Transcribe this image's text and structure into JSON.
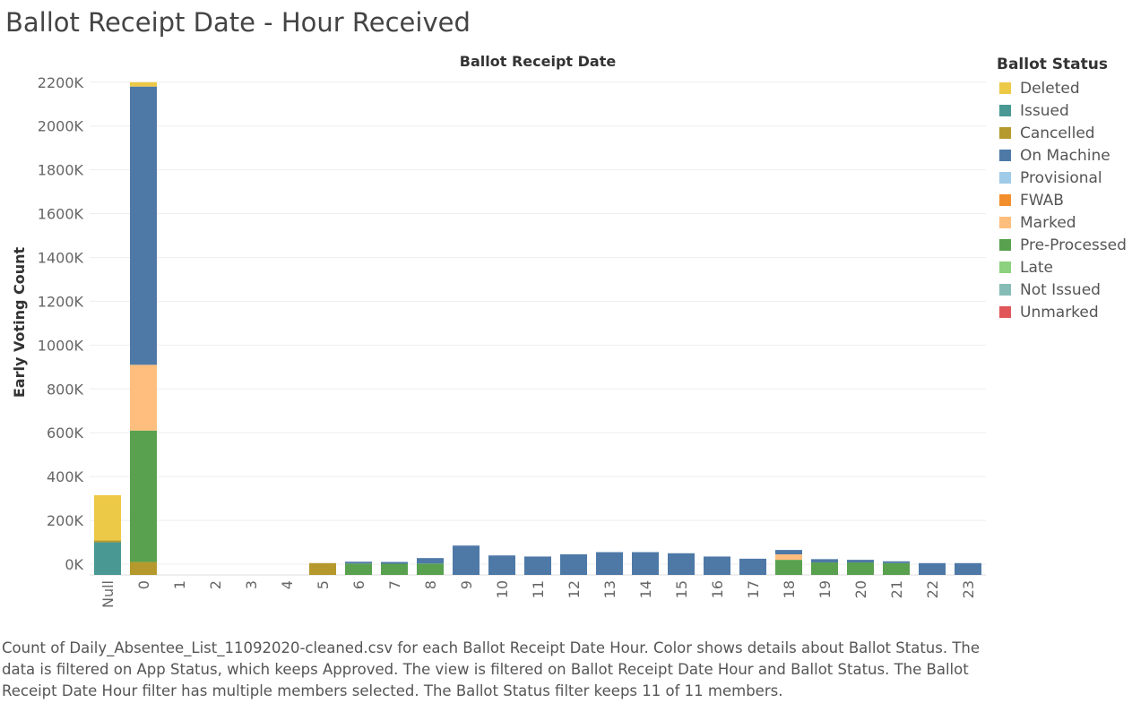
{
  "title": "Ballot Receipt Date - Hour Received",
  "legend": {
    "title": "Ballot Status",
    "items": [
      {
        "label": "Deleted",
        "color": "#EDC948"
      },
      {
        "label": "Issued",
        "color": "#499894"
      },
      {
        "label": "Cancelled",
        "color": "#B6992D"
      },
      {
        "label": "On Machine",
        "color": "#4E79A7"
      },
      {
        "label": "Provisional",
        "color": "#A0CBE8"
      },
      {
        "label": "FWAB",
        "color": "#F28E2B"
      },
      {
        "label": "Marked",
        "color": "#FFBE7D"
      },
      {
        "label": "Pre-Processed",
        "color": "#59A14F"
      },
      {
        "label": "Late",
        "color": "#8CD17D"
      },
      {
        "label": "Not Issued",
        "color": "#86BCB6"
      },
      {
        "label": "Unmarked",
        "color": "#E15759"
      }
    ]
  },
  "caption": "Count of Daily_Absentee_List_11092020-cleaned.csv for each Ballot Receipt Date Hour.  Color shows details about Ballot Status. The data is filtered on App Status, which keeps Approved. The view is filtered on Ballot Receipt Date Hour and Ballot Status. The Ballot Receipt Date Hour filter has multiple members selected. The Ballot Status filter keeps 11 of 11 members.",
  "chart_data": {
    "type": "bar",
    "stacked": true,
    "title": "Ballot Receipt Date",
    "xlabel": "",
    "ylabel": "Early Voting Count",
    "categories": [
      "Null",
      "0",
      "1",
      "2",
      "3",
      "4",
      "5",
      "6",
      "7",
      "8",
      "9",
      "10",
      "11",
      "12",
      "13",
      "14",
      "15",
      "16",
      "17",
      "18",
      "19",
      "20",
      "21",
      "22",
      "23"
    ],
    "y_ticks": [
      "0K",
      "200K",
      "400K",
      "600K",
      "800K",
      "1000K",
      "1200K",
      "1400K",
      "1600K",
      "1800K",
      "2000K",
      "2200K"
    ],
    "ylim": [
      -50,
      2200
    ],
    "grid": true,
    "legend_position": "right",
    "series": [
      {
        "name": "Issued",
        "color": "#499894",
        "values": [
          100,
          0,
          0,
          0,
          0,
          0,
          0,
          0,
          0,
          0,
          0,
          0,
          0,
          0,
          0,
          0,
          0,
          0,
          0,
          0,
          0,
          0,
          0,
          0,
          0
        ]
      },
      {
        "name": "Cancelled",
        "color": "#B6992D",
        "values": [
          5,
          10,
          0,
          0,
          0,
          0,
          5,
          0,
          0,
          0,
          0,
          0,
          0,
          0,
          0,
          0,
          0,
          0,
          0,
          0,
          0,
          0,
          0,
          0,
          0
        ]
      },
      {
        "name": "Pre-Processed",
        "color": "#59A14F",
        "values": [
          0,
          600,
          0,
          0,
          0,
          0,
          0,
          3,
          2,
          3,
          0,
          0,
          0,
          0,
          0,
          0,
          0,
          0,
          0,
          20,
          8,
          8,
          5,
          0,
          0
        ]
      },
      {
        "name": "Marked",
        "color": "#FFBE7D",
        "values": [
          0,
          300,
          0,
          0,
          0,
          0,
          0,
          0,
          0,
          0,
          0,
          0,
          0,
          0,
          0,
          0,
          0,
          0,
          0,
          25,
          0,
          0,
          0,
          0,
          0
        ]
      },
      {
        "name": "On Machine",
        "color": "#4E79A7",
        "values": [
          0,
          1270,
          0,
          0,
          0,
          0,
          0,
          5,
          8,
          25,
          85,
          40,
          35,
          45,
          55,
          55,
          50,
          35,
          25,
          20,
          15,
          12,
          3,
          5,
          5
        ]
      },
      {
        "name": "Deleted",
        "color": "#EDC948",
        "values": [
          210,
          20,
          0,
          0,
          0,
          0,
          0,
          0,
          0,
          0,
          0,
          0,
          0,
          0,
          0,
          0,
          0,
          0,
          0,
          0,
          0,
          0,
          0,
          0,
          0
        ]
      }
    ]
  }
}
